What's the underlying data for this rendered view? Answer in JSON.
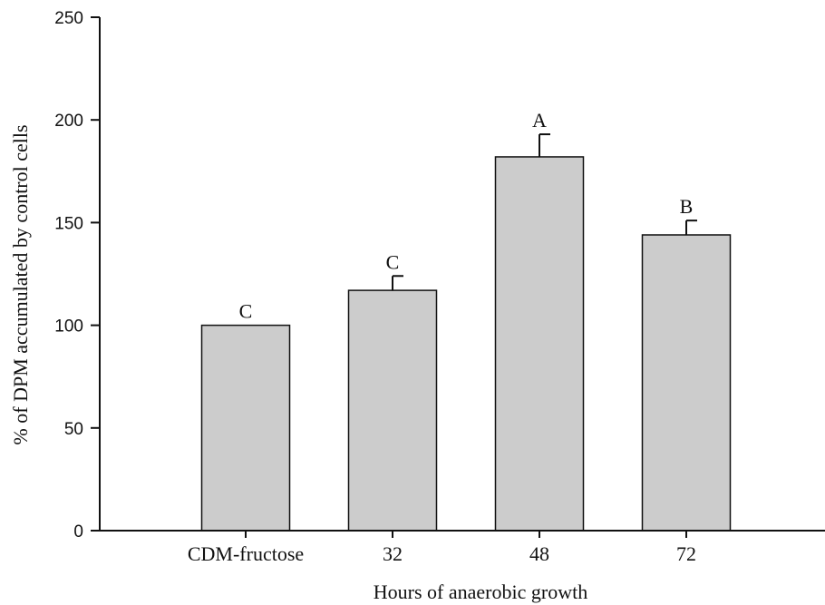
{
  "chart_data": {
    "type": "bar",
    "title": "",
    "xlabel": "Hours of anaerobic growth",
    "ylabel": "% of DPM accumulated by control cells",
    "categories": [
      "CDM-fructose",
      "32",
      "48",
      "72"
    ],
    "values": [
      100,
      117,
      182,
      144
    ],
    "errors": [
      0,
      7,
      11,
      7
    ],
    "significance_labels": [
      "C",
      "C",
      "A",
      "B"
    ],
    "ylim": [
      0,
      250
    ],
    "yticks": [
      0,
      50,
      100,
      150,
      200,
      250
    ],
    "grid": false,
    "colors": {
      "bar_fill": "#cccccc",
      "bar_stroke": "#111111",
      "axis": "#111111"
    }
  }
}
